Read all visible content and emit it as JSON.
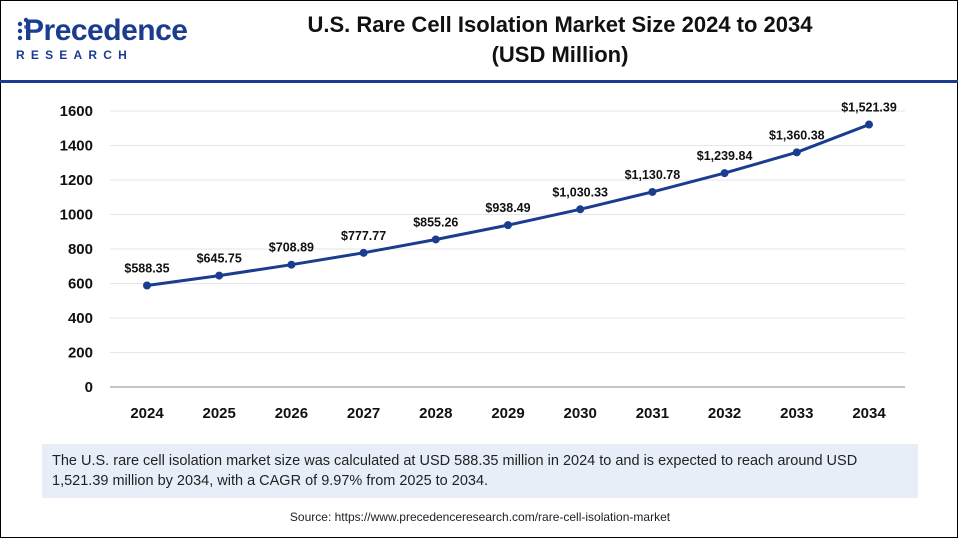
{
  "logo": {
    "word": "recedence",
    "initial": "P",
    "sub": "RESEARCH"
  },
  "title": {
    "line1": "U.S. Rare Cell Isolation Market Size 2024 to 2034",
    "line2": "(USD Million)"
  },
  "colors": {
    "line": "#1a3d8f",
    "brand": "#1a3d8f",
    "grid": "#e6e6e6",
    "summary_bg": "#e8eef8"
  },
  "chart_data": {
    "type": "line",
    "title": "U.S. Rare Cell Isolation Market Size 2024 to 2034 (USD Million)",
    "xlabel": "",
    "ylabel": "",
    "categories": [
      "2024",
      "2025",
      "2026",
      "2027",
      "2028",
      "2029",
      "2030",
      "2031",
      "2032",
      "2033",
      "2034"
    ],
    "series": [
      {
        "name": "Market Size (USD Million)",
        "values": [
          588.35,
          645.75,
          708.89,
          777.77,
          855.26,
          938.49,
          1030.33,
          1130.78,
          1239.84,
          1360.38,
          1521.39
        ]
      }
    ],
    "data_labels": [
      "$588.35",
      "$645.75",
      "$708.89",
      "$777.77",
      "$855.26",
      "$938.49",
      "$1,030.33",
      "$1,130.78",
      "$1,239.84",
      "$1,360.38",
      "$1,521.39"
    ],
    "yticks": [
      0,
      200,
      400,
      600,
      800,
      1000,
      1200,
      1400,
      1600
    ],
    "ylim": [
      0,
      1600
    ],
    "grid": true,
    "legend": "none"
  },
  "summary": "The U.S. rare cell isolation market size was calculated at USD 588.35 million in 2024 to and is expected to reach around USD 1,521.39 million by 2034, with a CAGR of 9.97% from 2025 to 2034.",
  "source": "Source: https://www.precedenceresearch.com/rare-cell-isolation-market"
}
